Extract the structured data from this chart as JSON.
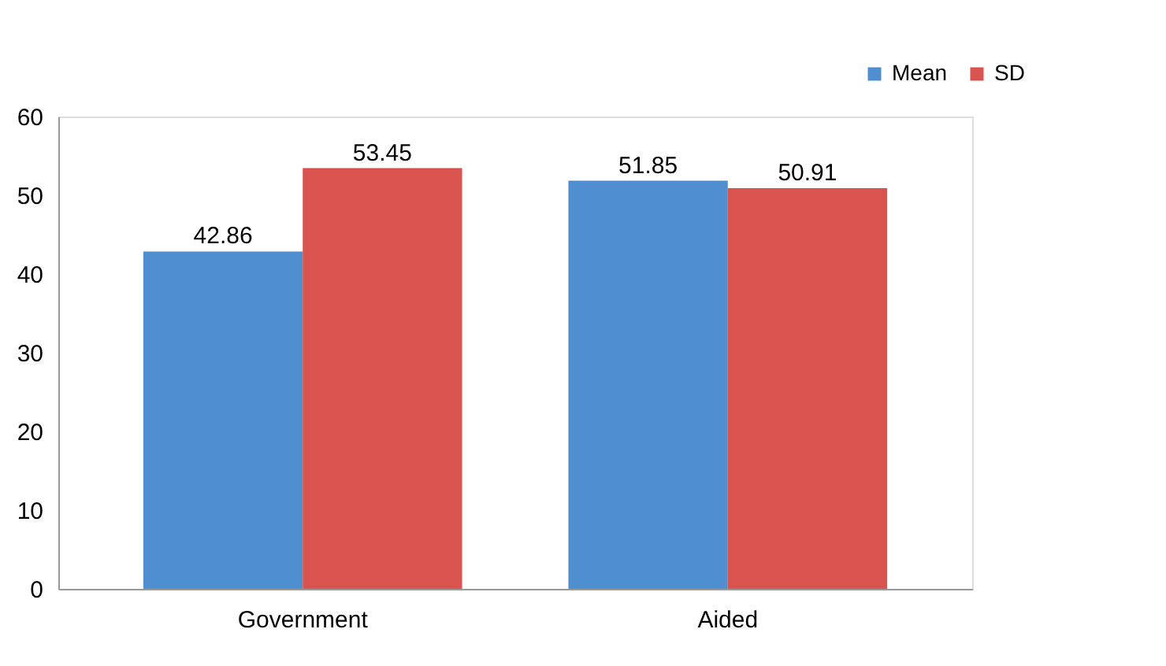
{
  "chart_data": {
    "type": "bar",
    "categories": [
      "Government",
      "Aided"
    ],
    "series": [
      {
        "name": "Mean",
        "color": "#4f8fcf",
        "values": [
          42.86,
          51.85
        ]
      },
      {
        "name": "SD",
        "color": "#d9534f",
        "values": [
          53.45,
          50.91
        ]
      }
    ],
    "ylim": [
      0,
      60
    ],
    "yticks": [
      0,
      10,
      20,
      30,
      40,
      50,
      60
    ],
    "grid": false,
    "legend": "top right",
    "data_labels": true
  }
}
